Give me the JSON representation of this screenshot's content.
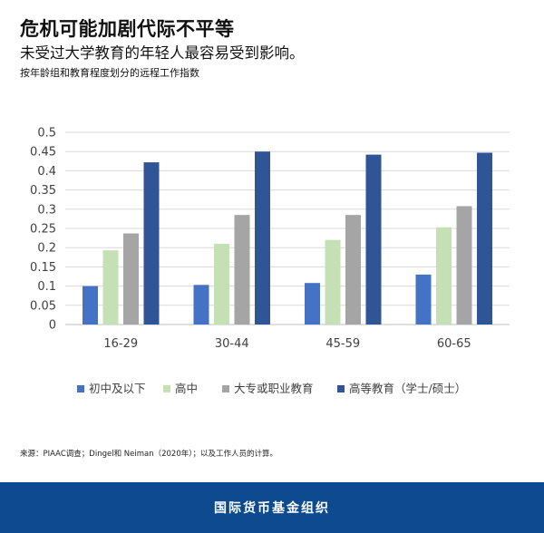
{
  "header": {
    "title": "危机可能加剧代际不平等",
    "subtitle": "未受过大学教育的年轻人最容易受到影响。",
    "subsubtitle": "按年龄组和教育程度划分的远程工作指数"
  },
  "chart_data": {
    "type": "bar",
    "categories": [
      "16-29",
      "30-44",
      "45-59",
      "60-65"
    ],
    "series": [
      {
        "name": "初中及以下",
        "color": "#4472c4",
        "values": [
          0.1,
          0.103,
          0.108,
          0.13
        ]
      },
      {
        "name": "高中",
        "color": "#c5e0b4",
        "values": [
          0.193,
          0.21,
          0.22,
          0.253
        ]
      },
      {
        "name": "大专或职业教育",
        "color": "#a5a5a5",
        "values": [
          0.237,
          0.285,
          0.285,
          0.308
        ]
      },
      {
        "name": "高等教育（学士/硕士）",
        "color": "#2f5597",
        "values": [
          0.422,
          0.45,
          0.442,
          0.447
        ]
      }
    ],
    "ylim": [
      0,
      0.5
    ],
    "yticks": [
      "0",
      "0.05",
      "0.1",
      "0.15",
      "0.2",
      "0.25",
      "0.3",
      "0.35",
      "0.4",
      "0.45",
      "0.5"
    ],
    "grid": true,
    "legend_position": "bottom"
  },
  "source": "来源：PIAAC调查；Dingel和 Neiman（2020年）；以及工作人员的计算。",
  "footer": {
    "label": "国际货币基金组织",
    "color": "#0d4a8f"
  }
}
